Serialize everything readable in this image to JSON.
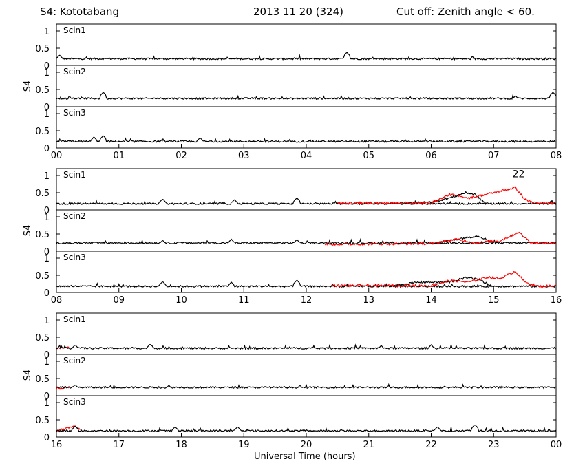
{
  "header": {
    "station": "S4: Kototabang",
    "date": "2013 11 20 (324)",
    "cutoff": "Cut off: Zenith angle < 60."
  },
  "chart_data": {
    "type": "line",
    "xlabel": "Universal Time (hours)",
    "ylabel": "S4",
    "ylim": [
      0,
      1.2
    ],
    "yticks": [
      0,
      0.5,
      1
    ],
    "ytick_labels": [
      "0",
      "0.5",
      "1"
    ],
    "colors": {
      "black": "#000000",
      "red": "#ff0000"
    },
    "blocks": [
      {
        "xrange": [
          0,
          8
        ],
        "xtick_labels": [
          "00",
          "01",
          "02",
          "03",
          "04",
          "05",
          "06",
          "07",
          "08"
        ],
        "panels": [
          {
            "label": "Scin1",
            "series": [
              {
                "color": "black",
                "baseline": 0.19,
                "spikes": [
                  [
                    4.65,
                    0.38
                  ],
                  [
                    0.05,
                    0.3
                  ]
                ]
              }
            ]
          },
          {
            "label": "Scin2",
            "series": [
              {
                "color": "black",
                "baseline": 0.24,
                "spikes": [
                  [
                    0.75,
                    0.42
                  ],
                  [
                    7.95,
                    0.42
                  ],
                  [
                    7.35,
                    0.32
                  ]
                ]
              }
            ]
          },
          {
            "label": "Scin3",
            "series": [
              {
                "color": "black",
                "baseline": 0.19,
                "spikes": [
                  [
                    0.6,
                    0.32
                  ],
                  [
                    0.75,
                    0.36
                  ],
                  [
                    2.3,
                    0.3
                  ]
                ]
              }
            ]
          }
        ]
      },
      {
        "xrange": [
          8,
          16
        ],
        "xtick_labels": [
          "08",
          "09",
          "10",
          "11",
          "12",
          "13",
          "14",
          "15",
          "16"
        ],
        "annotation": {
          "text": "22",
          "x": 15.4,
          "y": 0.95,
          "color": "red"
        },
        "panels": [
          {
            "label": "Scin1",
            "series": [
              {
                "color": "black",
                "baseline": 0.18,
                "spikes": [
                  [
                    9.7,
                    0.32
                  ],
                  [
                    10.85,
                    0.3
                  ],
                  [
                    11.85,
                    0.35
                  ]
                ]
              },
              {
                "color": "black",
                "t_start": 13.5,
                "t_end": 14.9,
                "profile": [
                  [
                    13.5,
                    0.2
                  ],
                  [
                    14.0,
                    0.22
                  ],
                  [
                    14.3,
                    0.35
                  ],
                  [
                    14.55,
                    0.5
                  ],
                  [
                    14.7,
                    0.45
                  ],
                  [
                    14.9,
                    0.15
                  ]
                ]
              },
              {
                "color": "red",
                "t_start": 12.5,
                "t_end": 16.0,
                "profile": [
                  [
                    12.5,
                    0.2
                  ],
                  [
                    14.0,
                    0.2
                  ],
                  [
                    14.3,
                    0.45
                  ],
                  [
                    14.6,
                    0.35
                  ],
                  [
                    15.0,
                    0.5
                  ],
                  [
                    15.35,
                    0.65
                  ],
                  [
                    15.5,
                    0.3
                  ],
                  [
                    15.7,
                    0.18
                  ],
                  [
                    16.0,
                    0.2
                  ]
                ]
              }
            ]
          },
          {
            "label": "Scin2",
            "series": [
              {
                "color": "black",
                "baseline": 0.24,
                "spikes": [
                  [
                    9.7,
                    0.32
                  ],
                  [
                    10.8,
                    0.35
                  ],
                  [
                    11.85,
                    0.34
                  ]
                ]
              },
              {
                "color": "black",
                "t_start": 14.0,
                "t_end": 15.0,
                "profile": [
                  [
                    14.0,
                    0.22
                  ],
                  [
                    14.5,
                    0.38
                  ],
                  [
                    14.75,
                    0.45
                  ],
                  [
                    15.0,
                    0.25
                  ]
                ]
              },
              {
                "color": "red",
                "t_start": 12.3,
                "t_end": 16.0,
                "profile": [
                  [
                    12.3,
                    0.2
                  ],
                  [
                    14.0,
                    0.22
                  ],
                  [
                    14.4,
                    0.35
                  ],
                  [
                    14.7,
                    0.25
                  ],
                  [
                    15.1,
                    0.3
                  ],
                  [
                    15.4,
                    0.55
                  ],
                  [
                    15.6,
                    0.25
                  ],
                  [
                    16.0,
                    0.22
                  ]
                ]
              }
            ]
          },
          {
            "label": "Scin3",
            "series": [
              {
                "color": "black",
                "baseline": 0.18,
                "spikes": [
                  [
                    9.7,
                    0.32
                  ],
                  [
                    10.8,
                    0.3
                  ],
                  [
                    11.85,
                    0.36
                  ]
                ]
              },
              {
                "color": "black",
                "t_start": 13.4,
                "t_end": 15.0,
                "profile": [
                  [
                    13.4,
                    0.2
                  ],
                  [
                    13.8,
                    0.3
                  ],
                  [
                    14.3,
                    0.3
                  ],
                  [
                    14.6,
                    0.45
                  ],
                  [
                    14.8,
                    0.35
                  ],
                  [
                    15.0,
                    0.15
                  ]
                ]
              },
              {
                "color": "red",
                "t_start": 12.4,
                "t_end": 16.0,
                "profile": [
                  [
                    12.4,
                    0.2
                  ],
                  [
                    14.0,
                    0.2
                  ],
                  [
                    14.3,
                    0.35
                  ],
                  [
                    14.6,
                    0.3
                  ],
                  [
                    14.9,
                    0.45
                  ],
                  [
                    15.1,
                    0.4
                  ],
                  [
                    15.35,
                    0.62
                  ],
                  [
                    15.5,
                    0.3
                  ],
                  [
                    15.7,
                    0.18
                  ],
                  [
                    16.0,
                    0.2
                  ]
                ]
              }
            ]
          }
        ]
      },
      {
        "xrange": [
          16,
          24
        ],
        "xtick_labels": [
          "16",
          "17",
          "18",
          "19",
          "20",
          "21",
          "22",
          "23",
          "00"
        ],
        "panels": [
          {
            "label": "Scin1",
            "series": [
              {
                "color": "red",
                "t_start": 16.0,
                "t_end": 16.2,
                "profile": [
                  [
                    16.0,
                    0.18
                  ],
                  [
                    16.2,
                    0.2
                  ]
                ]
              },
              {
                "color": "black",
                "baseline": 0.18,
                "spikes": [
                  [
                    16.3,
                    0.28
                  ],
                  [
                    17.5,
                    0.3
                  ],
                  [
                    21.2,
                    0.26
                  ],
                  [
                    22.0,
                    0.28
                  ]
                ]
              }
            ]
          },
          {
            "label": "Scin2",
            "series": [
              {
                "color": "red",
                "t_start": 16.0,
                "t_end": 16.2,
                "profile": [
                  [
                    16.0,
                    0.22
                  ],
                  [
                    16.2,
                    0.24
                  ]
                ]
              },
              {
                "color": "black",
                "baseline": 0.24,
                "spikes": [
                  [
                    16.3,
                    0.32
                  ],
                  [
                    17.8,
                    0.3
                  ],
                  [
                    19.9,
                    0.3
                  ]
                ]
              }
            ]
          },
          {
            "label": "Scin3",
            "series": [
              {
                "color": "red",
                "t_start": 16.0,
                "t_end": 16.4,
                "profile": [
                  [
                    16.0,
                    0.18
                  ],
                  [
                    16.3,
                    0.32
                  ],
                  [
                    16.4,
                    0.2
                  ]
                ]
              },
              {
                "color": "black",
                "baseline": 0.18,
                "spikes": [
                  [
                    16.3,
                    0.32
                  ],
                  [
                    17.9,
                    0.3
                  ],
                  [
                    18.9,
                    0.3
                  ],
                  [
                    22.1,
                    0.3
                  ],
                  [
                    22.7,
                    0.36
                  ]
                ]
              }
            ]
          }
        ]
      }
    ]
  }
}
